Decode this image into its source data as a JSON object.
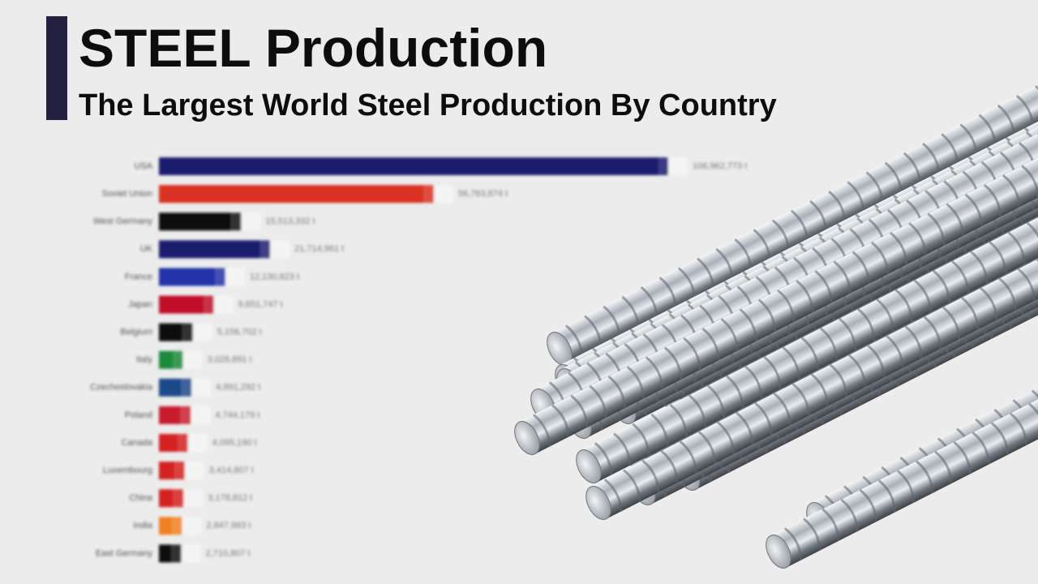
{
  "chart_data": {
    "type": "bar",
    "orientation": "horizontal",
    "title": "STEEL Production",
    "subtitle": "The Largest World Steel Production By Country",
    "categories": [
      "USA",
      "Soviet Union",
      "West Germany",
      "UK",
      "France",
      "Japan",
      "Belgium",
      "Italy",
      "Czechoslovakia",
      "Poland",
      "Canada",
      "Luxembourg",
      "China",
      "India",
      "East Germany"
    ],
    "values": [
      106962773,
      56763874,
      15513332,
      21714961,
      12130823,
      9651747,
      5156702,
      3028891,
      4891292,
      4744179,
      4095190,
      3414807,
      3178812,
      2847983,
      2710807
    ],
    "value_labels": [
      "106,962,773 t",
      "56,763,874 t",
      "15,513,332 t",
      "21,714,961 t",
      "12,130,823 t",
      "9,651,747 t",
      "5,156,702 t",
      "3,028,891 t",
      "4,891,292 t",
      "4,744,179 t",
      "4,095,190 t",
      "3,414,807 t",
      "3,178,812 t",
      "2,847,983 t",
      "2,710,807 t"
    ],
    "colors": [
      "#1a1a6e",
      "#d93020",
      "#111111",
      "#1b1f6e",
      "#2233a8",
      "#c0102a",
      "#111111",
      "#1a8a3a",
      "#1f4a8a",
      "#c81e2e",
      "#d42020",
      "#d42020",
      "#d42020",
      "#f08020",
      "#111111"
    ]
  }
}
